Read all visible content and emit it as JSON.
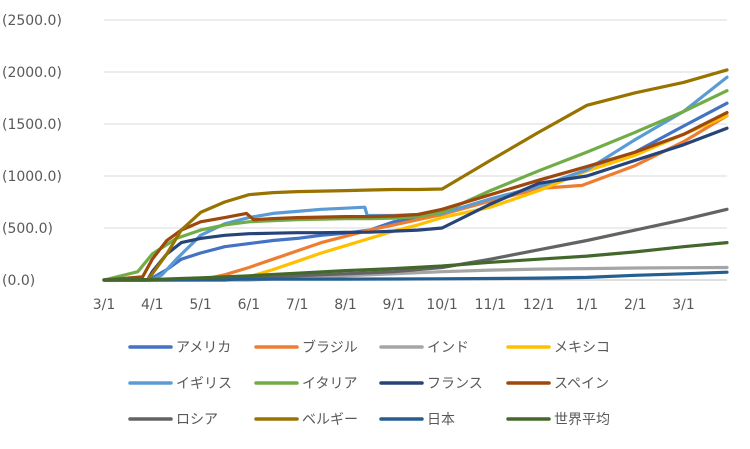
{
  "chart_data": {
    "type": "line",
    "title": "",
    "xlabel": "",
    "ylabel": "",
    "y_tick_labels": [
      "(0.0)",
      "(500.0)",
      "(1000.0)",
      "(1500.0)",
      "(2000.0)",
      "(2500.0)"
    ],
    "ylim": [
      0,
      2500
    ],
    "x_tick_labels": [
      "3/1",
      "4/1",
      "5/1",
      "6/1",
      "7/1",
      "8/1",
      "9/1",
      "10/1",
      "11/1",
      "12/1",
      "1/1",
      "2/1",
      "3/1"
    ],
    "x_units": "months since 3/1 (first year)",
    "xlim": [
      0,
      12.9
    ],
    "grid": "horizontal",
    "legend_position": "bottom",
    "series": [
      {
        "name": "アメリカ",
        "color": "#4472C4",
        "points": [
          [
            0,
            0
          ],
          [
            0.9,
            0
          ],
          [
            1.0,
            20
          ],
          [
            1.3,
            100
          ],
          [
            1.6,
            200
          ],
          [
            2.0,
            260
          ],
          [
            2.5,
            320
          ],
          [
            3.0,
            350
          ],
          [
            3.5,
            380
          ],
          [
            4.0,
            400
          ],
          [
            4.5,
            430
          ],
          [
            5.0,
            450
          ],
          [
            5.5,
            480
          ],
          [
            6.0,
            560
          ],
          [
            6.5,
            600
          ],
          [
            7.0,
            650
          ],
          [
            8.0,
            760
          ],
          [
            9.0,
            880
          ],
          [
            10.0,
            1050
          ],
          [
            11.0,
            1230
          ],
          [
            12.0,
            1480
          ],
          [
            12.9,
            1700
          ]
        ]
      },
      {
        "name": "ブラジル",
        "color": "#ED7D31",
        "points": [
          [
            0,
            0
          ],
          [
            2.0,
            0
          ],
          [
            2.5,
            50
          ],
          [
            3.0,
            120
          ],
          [
            3.5,
            200
          ],
          [
            4.0,
            280
          ],
          [
            4.5,
            360
          ],
          [
            5.0,
            420
          ],
          [
            5.5,
            480
          ],
          [
            6.0,
            530
          ],
          [
            6.5,
            580
          ],
          [
            7.0,
            630
          ],
          [
            8.0,
            760
          ],
          [
            9.0,
            880
          ],
          [
            9.9,
            910
          ],
          [
            11.0,
            1100
          ],
          [
            12.0,
            1330
          ],
          [
            12.9,
            1580
          ]
        ]
      },
      {
        "name": "インド",
        "color": "#A5A5A5",
        "points": [
          [
            0,
            0
          ],
          [
            3.0,
            0
          ],
          [
            4.0,
            20
          ],
          [
            5.0,
            40
          ],
          [
            6.0,
            60
          ],
          [
            7.0,
            80
          ],
          [
            8.0,
            95
          ],
          [
            9.0,
            105
          ],
          [
            10.0,
            110
          ],
          [
            11.0,
            115
          ],
          [
            12.0,
            118
          ],
          [
            12.9,
            120
          ]
        ]
      },
      {
        "name": "メキシコ",
        "color": "#FFC000",
        "points": [
          [
            0,
            0
          ],
          [
            2.5,
            0
          ],
          [
            3.0,
            30
          ],
          [
            3.5,
            100
          ],
          [
            4.0,
            180
          ],
          [
            4.5,
            260
          ],
          [
            5.0,
            330
          ],
          [
            5.5,
            400
          ],
          [
            6.0,
            470
          ],
          [
            6.5,
            530
          ],
          [
            7.0,
            600
          ],
          [
            8.0,
            700
          ],
          [
            9.0,
            860
          ],
          [
            10.0,
            1050
          ],
          [
            11.0,
            1200
          ],
          [
            12.0,
            1400
          ],
          [
            12.9,
            1580
          ]
        ]
      },
      {
        "name": "イギリス",
        "color": "#5B9BD5",
        "points": [
          [
            0,
            0
          ],
          [
            1.0,
            0
          ],
          [
            1.2,
            50
          ],
          [
            1.5,
            200
          ],
          [
            2.0,
            430
          ],
          [
            2.5,
            540
          ],
          [
            3.0,
            600
          ],
          [
            3.5,
            640
          ],
          [
            4.0,
            660
          ],
          [
            4.5,
            680
          ],
          [
            5.0,
            690
          ],
          [
            5.4,
            700
          ],
          [
            5.45,
            620
          ],
          [
            6.0,
            620
          ],
          [
            6.5,
            630
          ],
          [
            7.0,
            640
          ],
          [
            8.0,
            780
          ],
          [
            9.0,
            900
          ],
          [
            10.0,
            1060
          ],
          [
            11.0,
            1350
          ],
          [
            12.0,
            1620
          ],
          [
            12.9,
            1950
          ]
        ]
      },
      {
        "name": "イタリア",
        "color": "#70AD47",
        "points": [
          [
            0,
            0
          ],
          [
            0.7,
            80
          ],
          [
            1.0,
            250
          ],
          [
            1.5,
            400
          ],
          [
            2.0,
            480
          ],
          [
            2.5,
            530
          ],
          [
            3.0,
            560
          ],
          [
            3.5,
            570
          ],
          [
            4.0,
            580
          ],
          [
            4.5,
            585
          ],
          [
            5.0,
            590
          ],
          [
            5.5,
            590
          ],
          [
            6.0,
            595
          ],
          [
            6.5,
            610
          ],
          [
            7.0,
            650
          ],
          [
            8.0,
            860
          ],
          [
            9.0,
            1050
          ],
          [
            10.0,
            1230
          ],
          [
            11.0,
            1420
          ],
          [
            12.0,
            1620
          ],
          [
            12.9,
            1820
          ]
        ]
      },
      {
        "name": "フランス",
        "color": "#264478",
        "points": [
          [
            0,
            0
          ],
          [
            0.9,
            0
          ],
          [
            1.0,
            80
          ],
          [
            1.3,
            250
          ],
          [
            1.6,
            360
          ],
          [
            2.0,
            400
          ],
          [
            2.5,
            430
          ],
          [
            3.0,
            445
          ],
          [
            3.5,
            450
          ],
          [
            4.0,
            455
          ],
          [
            4.5,
            455
          ],
          [
            5.0,
            458
          ],
          [
            5.5,
            460
          ],
          [
            6.0,
            470
          ],
          [
            6.5,
            480
          ],
          [
            7.0,
            500
          ],
          [
            8.0,
            730
          ],
          [
            9.0,
            930
          ],
          [
            10.0,
            1000
          ],
          [
            11.0,
            1150
          ],
          [
            12.0,
            1300
          ],
          [
            12.9,
            1460
          ]
        ]
      },
      {
        "name": "スペイン",
        "color": "#9E480E",
        "points": [
          [
            0,
            0
          ],
          [
            0.8,
            30
          ],
          [
            1.0,
            200
          ],
          [
            1.3,
            380
          ],
          [
            1.6,
            480
          ],
          [
            2.0,
            560
          ],
          [
            2.5,
            600
          ],
          [
            2.95,
            640
          ],
          [
            3.1,
            580
          ],
          [
            3.5,
            590
          ],
          [
            4.0,
            600
          ],
          [
            4.5,
            605
          ],
          [
            5.0,
            610
          ],
          [
            5.5,
            610
          ],
          [
            6.0,
            615
          ],
          [
            6.5,
            630
          ],
          [
            7.0,
            680
          ],
          [
            8.0,
            820
          ],
          [
            9.0,
            960
          ],
          [
            10.0,
            1090
          ],
          [
            11.0,
            1230
          ],
          [
            12.0,
            1400
          ],
          [
            12.9,
            1610
          ]
        ]
      },
      {
        "name": "ロシア",
        "color": "#636363",
        "points": [
          [
            0,
            0
          ],
          [
            2.5,
            0
          ],
          [
            3.0,
            20
          ],
          [
            4.0,
            40
          ],
          [
            5.0,
            60
          ],
          [
            6.0,
            80
          ],
          [
            7.0,
            120
          ],
          [
            8.0,
            200
          ],
          [
            9.0,
            290
          ],
          [
            10.0,
            380
          ],
          [
            11.0,
            480
          ],
          [
            12.0,
            580
          ],
          [
            12.9,
            680
          ]
        ]
      },
      {
        "name": "ベルギー",
        "color": "#997300",
        "points": [
          [
            0,
            0
          ],
          [
            0.9,
            0
          ],
          [
            1.0,
            60
          ],
          [
            1.3,
            250
          ],
          [
            1.6,
            480
          ],
          [
            2.0,
            650
          ],
          [
            2.5,
            750
          ],
          [
            3.0,
            820
          ],
          [
            3.5,
            840
          ],
          [
            4.0,
            850
          ],
          [
            4.5,
            855
          ],
          [
            5.0,
            860
          ],
          [
            5.5,
            865
          ],
          [
            6.0,
            870
          ],
          [
            6.5,
            870
          ],
          [
            7.0,
            875
          ],
          [
            8.0,
            1150
          ],
          [
            9.0,
            1420
          ],
          [
            10.0,
            1680
          ],
          [
            11.0,
            1800
          ],
          [
            12.0,
            1900
          ],
          [
            12.9,
            2020
          ]
        ]
      },
      {
        "name": "日本",
        "color": "#255E91",
        "points": [
          [
            0,
            0
          ],
          [
            1.0,
            0
          ],
          [
            2.0,
            5
          ],
          [
            3.0,
            8
          ],
          [
            4.0,
            8
          ],
          [
            5.0,
            9
          ],
          [
            6.0,
            10
          ],
          [
            7.0,
            12
          ],
          [
            8.0,
            14
          ],
          [
            9.0,
            18
          ],
          [
            10.0,
            25
          ],
          [
            11.0,
            45
          ],
          [
            12.0,
            60
          ],
          [
            12.9,
            75
          ]
        ]
      },
      {
        "name": "世界平均",
        "color": "#43682B",
        "points": [
          [
            0,
            0
          ],
          [
            1.0,
            5
          ],
          [
            2.0,
            20
          ],
          [
            3.0,
            40
          ],
          [
            4.0,
            65
          ],
          [
            5.0,
            90
          ],
          [
            6.0,
            110
          ],
          [
            7.0,
            135
          ],
          [
            8.0,
            170
          ],
          [
            9.0,
            200
          ],
          [
            10.0,
            230
          ],
          [
            11.0,
            270
          ],
          [
            12.0,
            320
          ],
          [
            12.9,
            360
          ]
        ]
      }
    ]
  }
}
